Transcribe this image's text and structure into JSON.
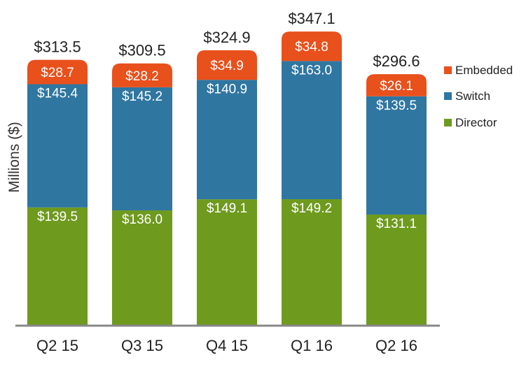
{
  "chart_data": {
    "type": "bar",
    "stacked": true,
    "categories": [
      "Q2 15",
      "Q3 15",
      "Q4 15",
      "Q1 16",
      "Q2 16"
    ],
    "series": [
      {
        "name": "Director",
        "values": [
          139.5,
          136.0,
          149.1,
          149.2,
          131.1
        ],
        "labels": [
          "$139.5",
          "$136.0",
          "$149.1",
          "$149.2",
          "$131.1"
        ],
        "color": "#6e9a1e"
      },
      {
        "name": "Switch",
        "values": [
          145.4,
          145.2,
          140.9,
          163.0,
          139.5
        ],
        "labels": [
          "$145.4",
          "$145.2",
          "$140.9",
          "$163.0",
          "$139.5"
        ],
        "color": "#2f76a1"
      },
      {
        "name": "Embedded",
        "values": [
          28.7,
          28.2,
          34.9,
          34.8,
          26.1
        ],
        "labels": [
          "$28.7",
          "$28.2",
          "$34.9",
          "$34.8",
          "$26.1"
        ],
        "color": "#e8501c"
      }
    ],
    "totals": [
      313.5,
      309.5,
      324.9,
      347.1,
      296.6
    ],
    "total_labels": [
      "$313.5",
      "$309.5",
      "$324.9",
      "$347.1",
      "$296.6"
    ],
    "title": "",
    "xlabel": "",
    "ylabel": "Millions ($)",
    "ylim": [
      0,
      347.1
    ],
    "grid": false,
    "legend_position": "right",
    "legend_order": [
      "Embedded",
      "Switch",
      "Director"
    ],
    "axis_color": "#888888"
  }
}
